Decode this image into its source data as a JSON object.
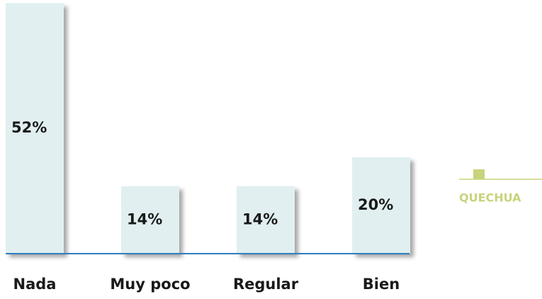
{
  "chart_data": {
    "type": "bar",
    "categories": [
      "Nada",
      "Muy poco",
      "Regular",
      "Bien"
    ],
    "series": [
      {
        "name": "QUECHUA",
        "color": "#e1eff0",
        "legend_color": "#c8d37c",
        "values": [
          52,
          14,
          14,
          20
        ],
        "value_labels": [
          "52%",
          "14%",
          "14%",
          "20%"
        ]
      }
    ]
  }
}
